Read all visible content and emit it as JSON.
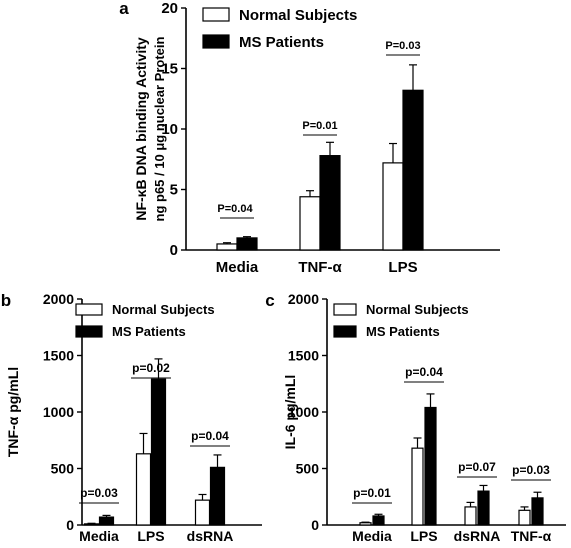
{
  "chart_data": [
    {
      "panel_letter": "a",
      "type": "bar",
      "ylabel": [
        "NF-κB DNA binding Activity",
        "ng p65 / 10 μg nuclear Protein"
      ],
      "xlabel": "",
      "ylim": [
        0,
        20
      ],
      "yticks": [
        "0",
        "5",
        "10",
        "15",
        "20"
      ],
      "categories": [
        "Media",
        "TNF-α",
        "LPS"
      ],
      "series": [
        {
          "name": "Normal Subjects",
          "values": [
            0.5,
            4.4,
            7.2
          ],
          "errors": [
            0.1,
            0.5,
            1.6
          ],
          "fill": "#ffffff"
        },
        {
          "name": "MS Patients",
          "values": [
            1.0,
            7.8,
            13.2
          ],
          "errors": [
            0.1,
            1.1,
            2.1
          ],
          "fill": "#000000"
        }
      ],
      "p_values": [
        "P=0.04",
        "P=0.01",
        "P=0.03"
      ],
      "legend": "top-left",
      "grid": false
    },
    {
      "panel_letter": "b",
      "type": "bar",
      "ylabel": "TNF-α pg/mLl",
      "xlabel": "",
      "ylim": [
        0,
        2000
      ],
      "yticks": [
        "0",
        "500",
        "1000",
        "1500",
        "2000"
      ],
      "categories": [
        "Media",
        "LPS",
        "dsRNA"
      ],
      "series": [
        {
          "name": "Normal Subjects",
          "values": [
            10,
            630,
            220
          ],
          "errors": [
            5,
            180,
            50
          ],
          "fill": "#ffffff"
        },
        {
          "name": "MS Patients",
          "values": [
            70,
            1290,
            510
          ],
          "errors": [
            15,
            180,
            110
          ],
          "fill": "#000000"
        }
      ],
      "p_values": [
        "p=0.03",
        "p=0.02",
        "p=0.04"
      ],
      "legend": "top-left",
      "grid": false
    },
    {
      "panel_letter": "c",
      "type": "bar",
      "ylabel": "IL-6 pg/mLl",
      "xlabel": "",
      "ylim": [
        0,
        2000
      ],
      "yticks": [
        "0",
        "500",
        "1000",
        "1500",
        "2000"
      ],
      "categories": [
        "Media",
        "LPS",
        "dsRNA",
        "TNF-α"
      ],
      "series": [
        {
          "name": "Normal Subjects",
          "values": [
            20,
            680,
            160,
            130
          ],
          "errors": [
            5,
            90,
            40,
            30
          ],
          "fill": "#ffffff"
        },
        {
          "name": "MS Patients",
          "values": [
            80,
            1040,
            300,
            240
          ],
          "errors": [
            15,
            120,
            50,
            50
          ],
          "fill": "#000000"
        }
      ],
      "p_values": [
        "p=0.01",
        "p=0.04",
        "p=0.07",
        "p=0.03"
      ],
      "legend": "top-left",
      "grid": false
    }
  ]
}
